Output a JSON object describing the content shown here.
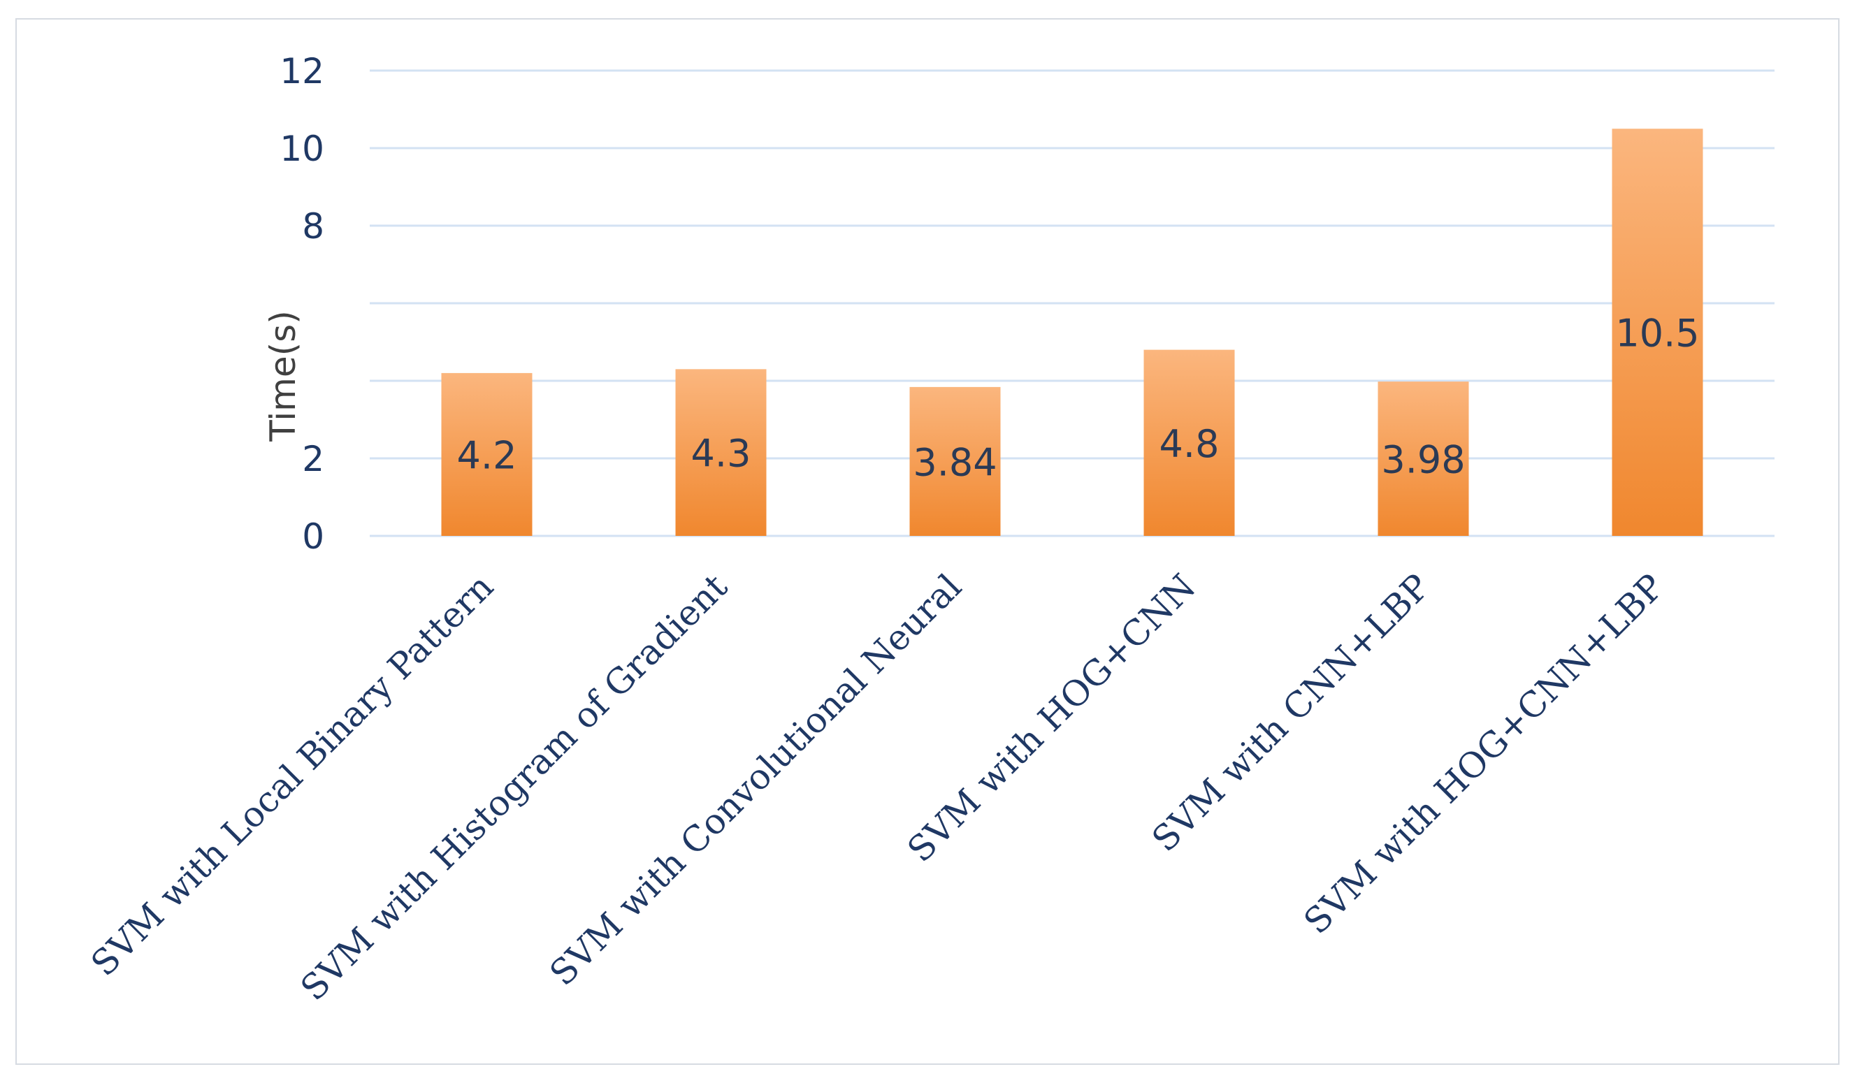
{
  "chart_data": {
    "type": "bar",
    "title": "",
    "xlabel": "",
    "ylabel": "Time(s)",
    "ylim": [
      0,
      12
    ],
    "y_gridlines": [
      0,
      2,
      4,
      6,
      8,
      10,
      12
    ],
    "y_tick_labels": [
      "0",
      "2",
      "",
      "",
      "8",
      "10",
      "12"
    ],
    "grid": true,
    "categories": [
      "SVM with Local Binary Pattern",
      "SVM with Histogram of Gradient",
      "SVM with Convolutional Neural",
      "SVM with HOG+CNN",
      "SVM with CNN+LBP",
      "SVM with HOG+CNN+LBP"
    ],
    "values": [
      4.2,
      4.3,
      3.84,
      4.8,
      3.98,
      10.5
    ],
    "value_labels": [
      "4.2",
      "4.3",
      "3.84",
      "4.8",
      "3.98",
      "10.5"
    ],
    "bar_color_top": "#fbb67e",
    "bar_color_bottom": "#f0872e",
    "grid_color": "#d3e2f3",
    "text_color": "#1f3864"
  }
}
